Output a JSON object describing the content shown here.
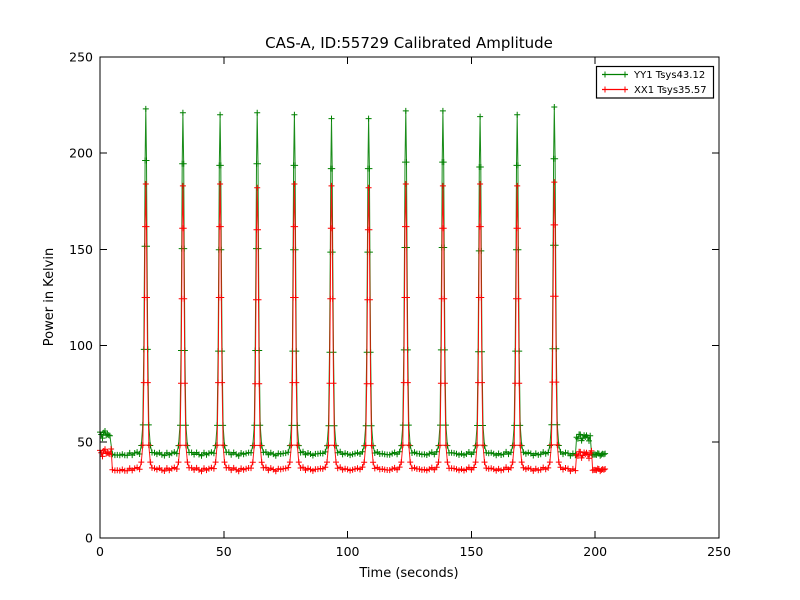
{
  "chart_data": {
    "type": "line",
    "title": "CAS-A, ID:55729 Calibrated Amplitude",
    "xlabel": "Time (seconds)",
    "ylabel": "Power in Kelvin",
    "xlim": [
      0,
      250
    ],
    "ylim": [
      0,
      250
    ],
    "xticks": [
      0,
      50,
      100,
      150,
      200,
      250
    ],
    "yticks": [
      0,
      50,
      100,
      150,
      200,
      250
    ],
    "grid": false,
    "background_color": "#ffffff",
    "axes_color": "#000000",
    "marker": "+",
    "legend": {
      "position": "upper right",
      "border_color": "#000000",
      "entries": [
        {
          "label": "YY1 Tsys43.12",
          "color": "#008000"
        },
        {
          "label": "XX1 Tsys35.57",
          "color": "#ff0000"
        }
      ]
    },
    "series": [
      {
        "name": "YY1",
        "label": "YY1 Tsys43.12",
        "tsys": 43.12,
        "color": "#008000",
        "marker": "+",
        "baseline_kelvin": 44.5,
        "baseline_dip_kelvin": 1.3,
        "noise_kelvin": 0.8,
        "start_block": {
          "t_start": 0,
          "t_end": 4,
          "kelvin": 54,
          "noise_kelvin": 2.2
        },
        "end_block": {
          "t_start": 192.5,
          "t_end": 198,
          "kelvin": 52.5,
          "noise_kelvin": 2.2
        },
        "tail": {
          "t_start": 198.5,
          "t_end": 204,
          "kelvin": 43.5
        },
        "spike_times": [
          18.5,
          33.5,
          48.5,
          63.5,
          78.5,
          93.5,
          108.5,
          123.5,
          138.5,
          153.5,
          168.5,
          183.5
        ],
        "spike_peaks_kelvin": [
          223,
          221,
          220,
          221,
          220,
          218,
          218,
          222,
          222,
          219,
          220,
          224
        ],
        "spike_profile": {
          "offsets_s": [
            -1.8,
            -1.2,
            -0.8,
            -0.5,
            -0.3,
            0,
            0.3,
            0.5,
            0.8,
            1.2,
            1.8
          ],
          "fractions": [
            0.02,
            0.08,
            0.3,
            0.6,
            0.85,
            1,
            0.85,
            0.6,
            0.3,
            0.08,
            0.02
          ]
        }
      },
      {
        "name": "XX1",
        "label": "XX1 Tsys35.57",
        "tsys": 35.57,
        "color": "#ff0000",
        "marker": "+",
        "baseline_kelvin": 36.5,
        "baseline_dip_kelvin": 1.3,
        "noise_kelvin": 0.8,
        "start_block": {
          "t_start": 0,
          "t_end": 4.5,
          "kelvin": 44.5,
          "noise_kelvin": 2.2
        },
        "end_block": {
          "t_start": 192.5,
          "t_end": 198.5,
          "kelvin": 43.5,
          "noise_kelvin": 2.2
        },
        "tail": {
          "t_start": 199,
          "t_end": 204,
          "kelvin": 35.5
        },
        "spike_times": [
          18.5,
          33.5,
          48.5,
          63.5,
          78.5,
          93.5,
          108.5,
          123.5,
          138.5,
          153.5,
          168.5,
          183.5
        ],
        "spike_peaks_kelvin": [
          184,
          183,
          184,
          182,
          184,
          183,
          182,
          184,
          183,
          184,
          183,
          185
        ],
        "spike_profile": {
          "offsets_s": [
            -1.8,
            -1.2,
            -0.8,
            -0.5,
            -0.3,
            0,
            0.3,
            0.5,
            0.8,
            1.2,
            1.8
          ],
          "fractions": [
            0.02,
            0.08,
            0.3,
            0.6,
            0.85,
            1,
            0.85,
            0.6,
            0.3,
            0.08,
            0.02
          ]
        }
      }
    ]
  }
}
